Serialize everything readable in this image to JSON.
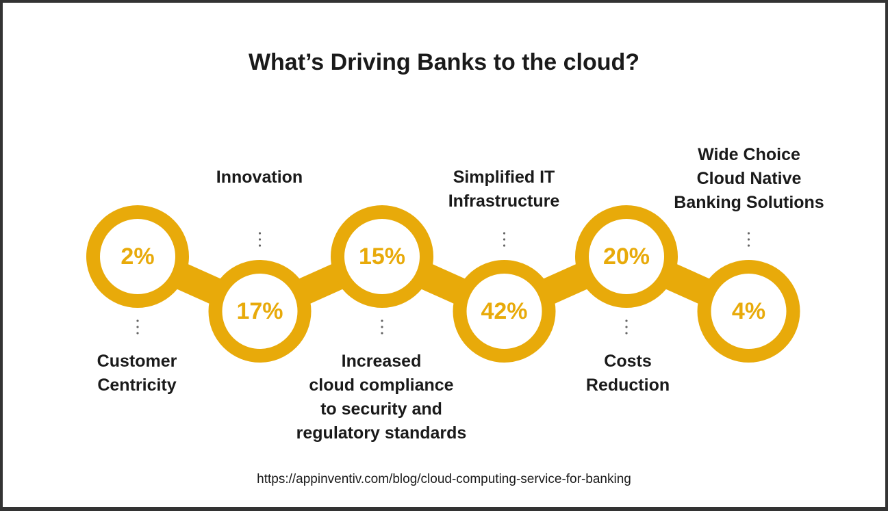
{
  "page": {
    "title": "What’s Driving Banks to the cloud?",
    "source_url": "https://appinventiv.com/blog/cloud-computing-service-for-banking"
  },
  "colors": {
    "ring": "#E8AA0A",
    "text_dark": "#1a1a1a",
    "background": "#ffffff"
  },
  "chart_data": {
    "type": "infographic",
    "unit": "%",
    "categories": [
      "Customer Centricity",
      "Innovation",
      "Increased cloud compliance to security and regulatory standards",
      "Simplified IT Infrastructure",
      "Costs Reduction",
      "Wide Choice Cloud Native Banking Solutions"
    ],
    "values": [
      2,
      17,
      15,
      42,
      20,
      4
    ],
    "value_labels": [
      "2%",
      "17%",
      "15%",
      "42%",
      "20%",
      "4%"
    ]
  },
  "labels": [
    "Customer\nCentricity",
    "Innovation",
    "Increased\ncloud compliance\nto security and\nregulatory standards",
    "Simplified IT\nInfrastructure",
    "Costs\nReduction",
    "Wide Choice\nCloud Native\nBanking Solutions"
  ]
}
